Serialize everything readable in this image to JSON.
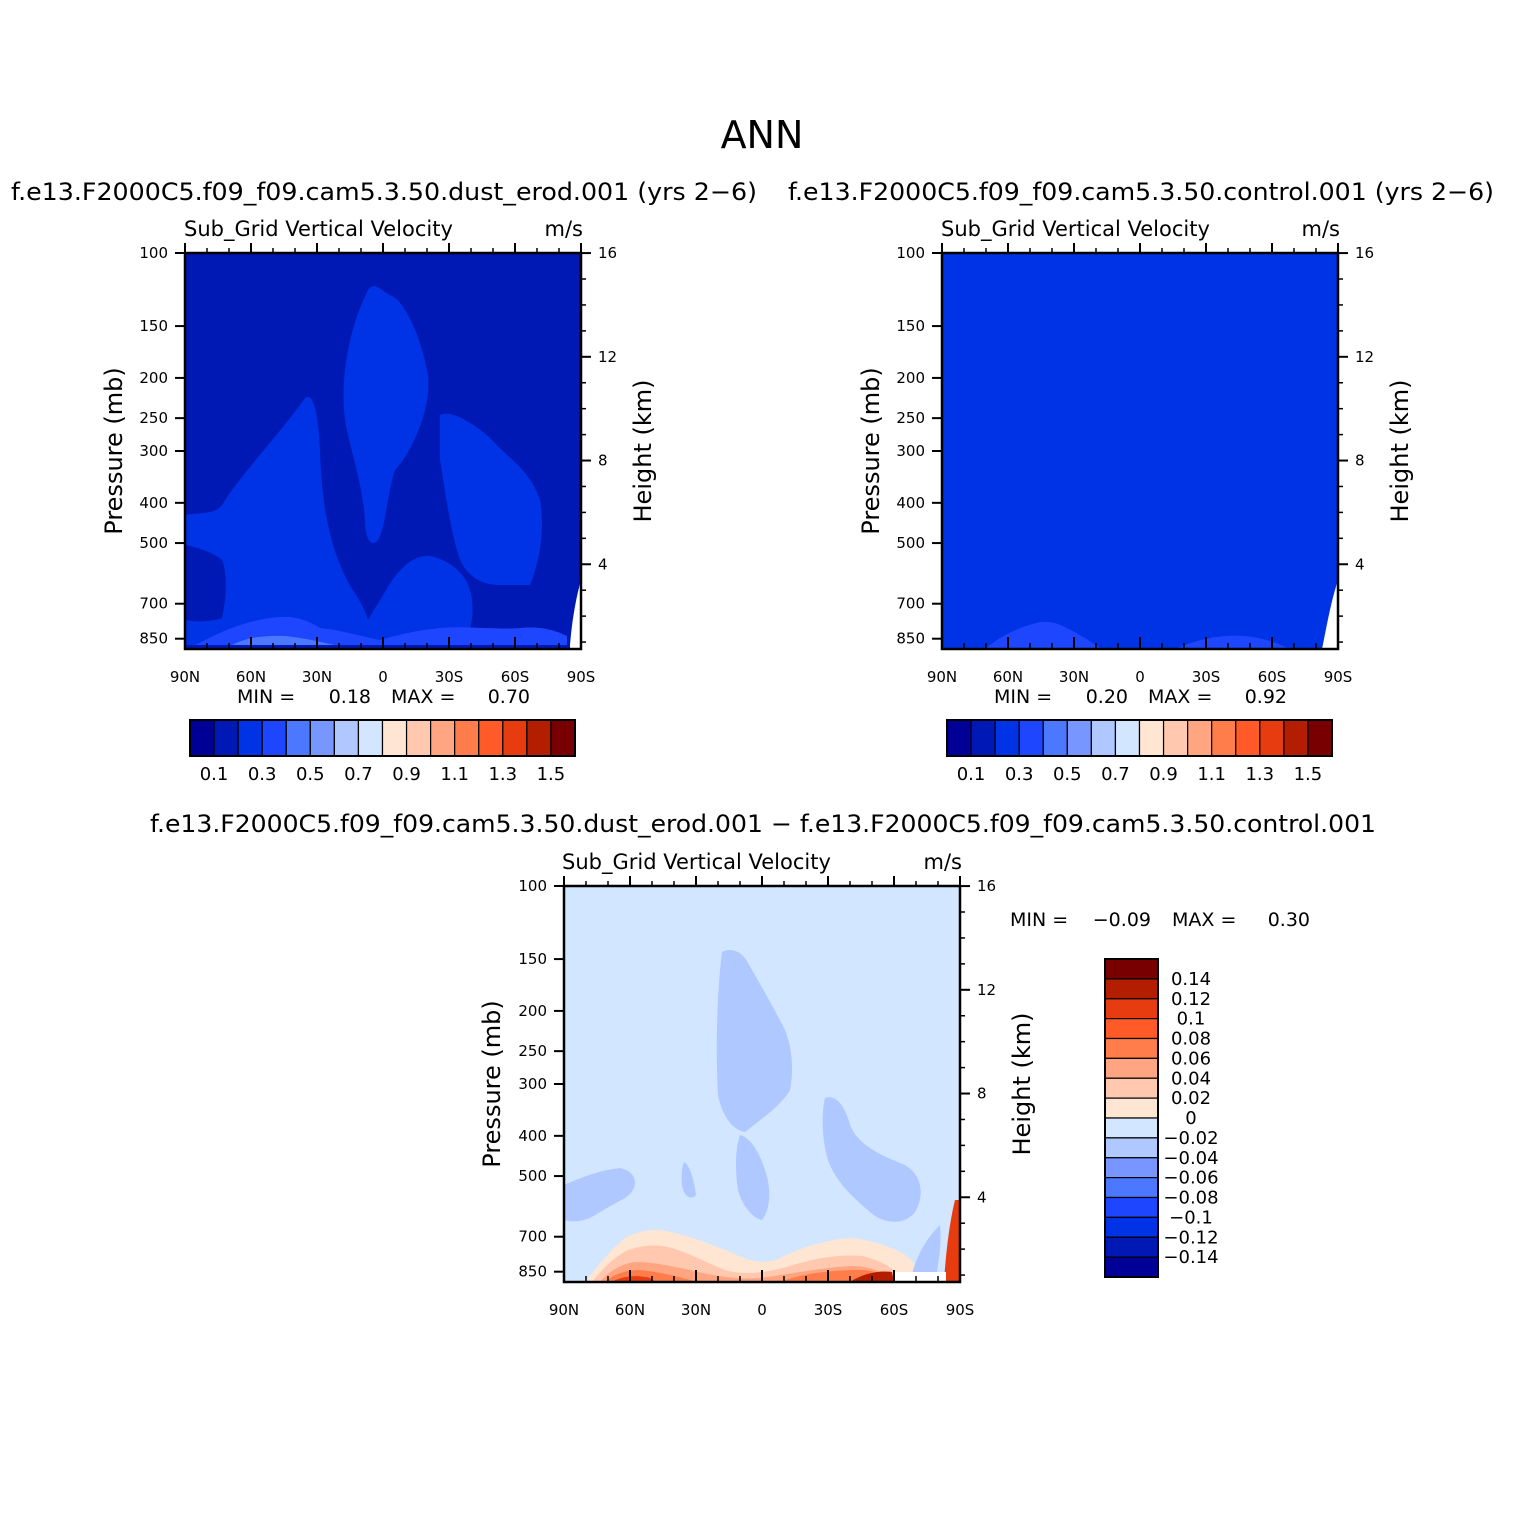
{
  "page_title": "ANN",
  "chart_data": [
    {
      "type": "heatmap",
      "title": "f.e13.F2000C5.f09_f09.cam5.3.50.dust_erod.001  (yrs 2−6)",
      "subtitle_left": "Sub_Grid Vertical Velocity",
      "subtitle_right": "m/s",
      "xlabel": "",
      "ylabel": "Pressure (mb)",
      "y2label": "Height (km)",
      "x_ticks": [
        "90N",
        "60N",
        "30N",
        "0",
        "30S",
        "60S",
        "90S"
      ],
      "y_ticks": [
        "100",
        "150",
        "200",
        "250",
        "300",
        "400",
        "500",
        "700",
        "850"
      ],
      "y2_ticks": [
        "16",
        "12",
        "8",
        "4"
      ],
      "stats": {
        "min_label": "MIN =",
        "min": "0.18",
        "max_label": "MAX =",
        "max": "0.70"
      },
      "colorbar": {
        "orientation": "horizontal",
        "labels": [
          "0.1",
          "0.3",
          "0.5",
          "0.7",
          "0.9",
          "1.1",
          "1.3",
          "1.5"
        ],
        "colors": [
          "#000096",
          "#0019b4",
          "#0032e6",
          "#1e46ff",
          "#4b78ff",
          "#7896ff",
          "#afc8ff",
          "#d2e6ff",
          "#ffe6d2",
          "#ffc8af",
          "#ffa582",
          "#ff7d4b",
          "#ff5a28",
          "#e63c0f",
          "#b41e00",
          "#780000"
        ]
      }
    },
    {
      "type": "heatmap",
      "title": "f.e13.F2000C5.f09_f09.cam5.3.50.control.001  (yrs 2−6)",
      "subtitle_left": "Sub_Grid Vertical Velocity",
      "subtitle_right": "m/s",
      "xlabel": "",
      "ylabel": "Pressure (mb)",
      "y2label": "Height (km)",
      "x_ticks": [
        "90N",
        "60N",
        "30N",
        "0",
        "30S",
        "60S",
        "90S"
      ],
      "y_ticks": [
        "100",
        "150",
        "200",
        "250",
        "300",
        "400",
        "500",
        "700",
        "850"
      ],
      "y2_ticks": [
        "16",
        "12",
        "8",
        "4"
      ],
      "stats": {
        "min_label": "MIN =",
        "min": "0.20",
        "max_label": "MAX =",
        "max": "0.92"
      },
      "colorbar": {
        "orientation": "horizontal",
        "labels": [
          "0.1",
          "0.3",
          "0.5",
          "0.7",
          "0.9",
          "1.1",
          "1.3",
          "1.5"
        ],
        "colors": [
          "#000096",
          "#0019b4",
          "#0032e6",
          "#1e46ff",
          "#4b78ff",
          "#7896ff",
          "#afc8ff",
          "#d2e6ff",
          "#ffe6d2",
          "#ffc8af",
          "#ffa582",
          "#ff7d4b",
          "#ff5a28",
          "#e63c0f",
          "#b41e00",
          "#780000"
        ]
      }
    },
    {
      "type": "heatmap",
      "title": "f.e13.F2000C5.f09_f09.cam5.3.50.dust_erod.001 − f.e13.F2000C5.f09_f09.cam5.3.50.control.001",
      "subtitle_left": "Sub_Grid Vertical Velocity",
      "subtitle_right": "m/s",
      "xlabel": "",
      "ylabel": "Pressure (mb)",
      "y2label": "Height (km)",
      "x_ticks": [
        "90N",
        "60N",
        "30N",
        "0",
        "30S",
        "60S",
        "90S"
      ],
      "y_ticks": [
        "100",
        "150",
        "200",
        "250",
        "300",
        "400",
        "500",
        "700",
        "850"
      ],
      "y2_ticks": [
        "16",
        "12",
        "8",
        "4"
      ],
      "stats": {
        "min_label": "MIN =",
        "min": "−0.09",
        "max_label": "MAX =",
        "max": "0.30"
      },
      "colorbar": {
        "orientation": "vertical",
        "labels": [
          "0.14",
          "0.12",
          "0.1",
          "0.08",
          "0.06",
          "0.04",
          "0.02",
          "0",
          "−0.02",
          "−0.04",
          "−0.06",
          "−0.08",
          "−0.1",
          "−0.12",
          "−0.14"
        ],
        "colors": [
          "#780000",
          "#b41e00",
          "#e63c0f",
          "#ff5a28",
          "#ff7d4b",
          "#ffa582",
          "#ffc8af",
          "#ffe6d2",
          "#d2e6ff",
          "#afc8ff",
          "#7896ff",
          "#4b78ff",
          "#1e46ff",
          "#0032e6",
          "#0019b4",
          "#000096"
        ]
      }
    }
  ]
}
